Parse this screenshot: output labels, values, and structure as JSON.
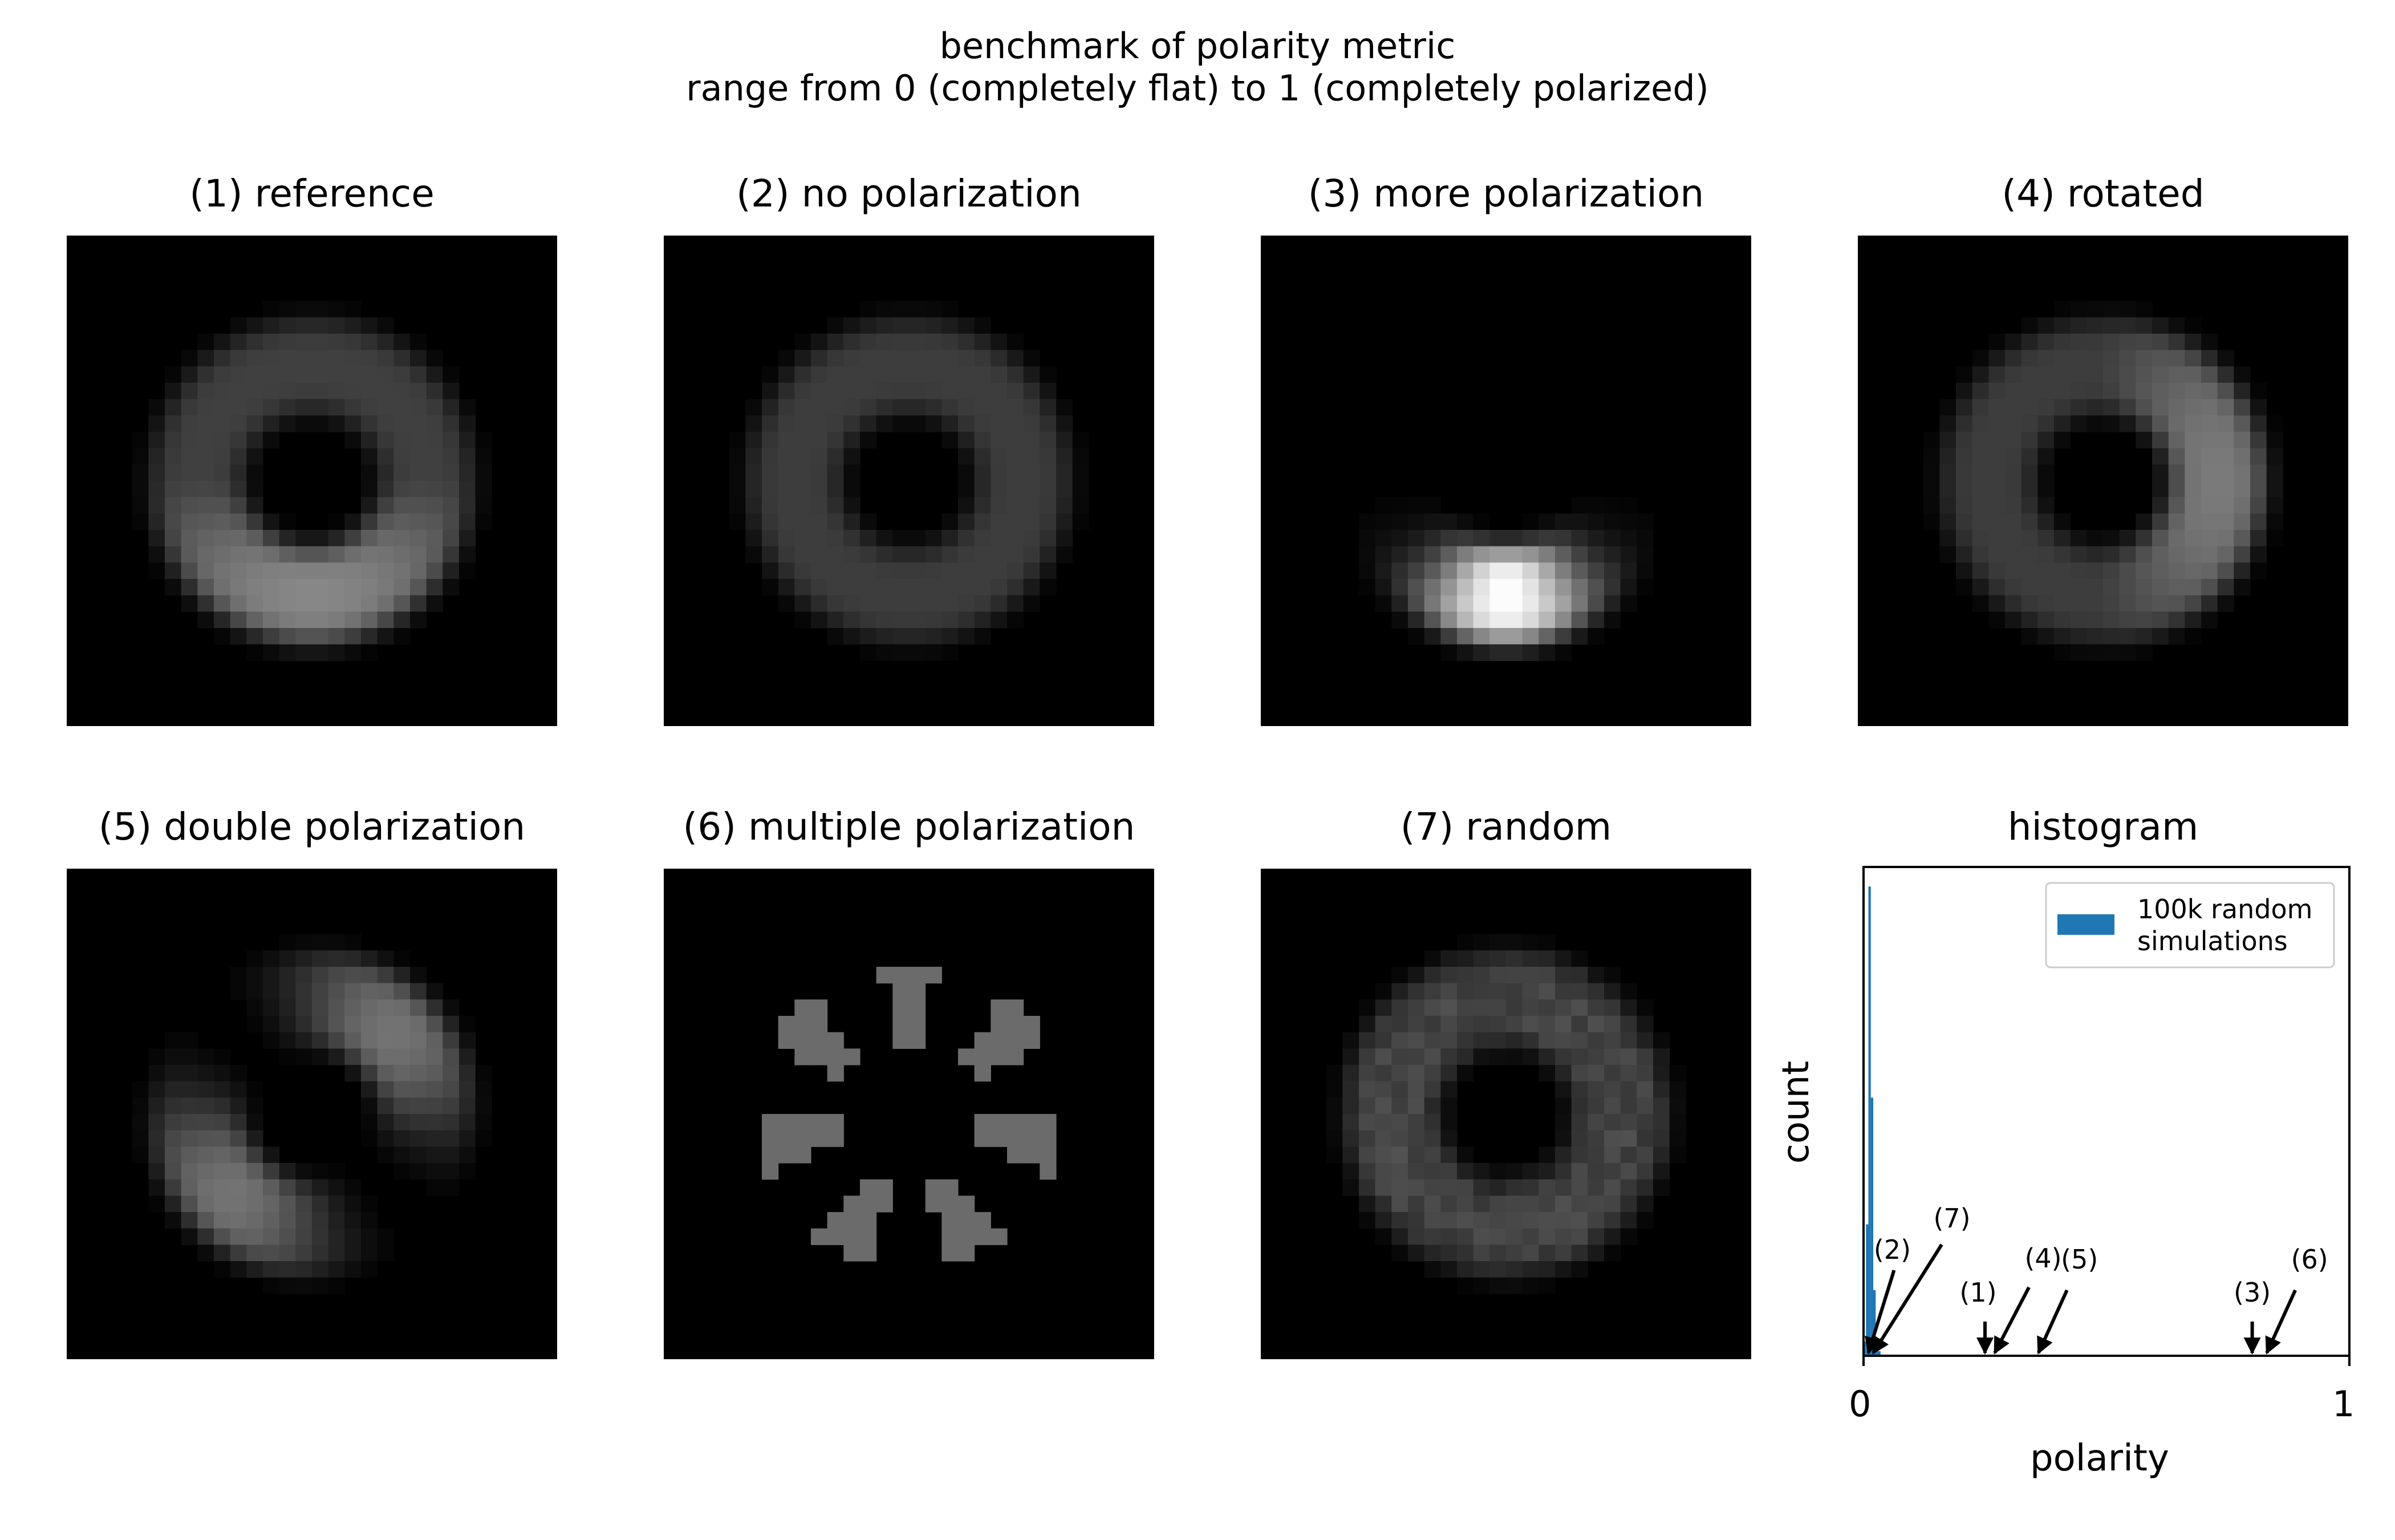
{
  "figure": {
    "title_line1": "benchmark of polarity metric",
    "title_line2": "range from 0 (completely flat) to 1 (completely polarized)"
  },
  "panels": [
    {
      "title": "(1) reference",
      "kind": "reference"
    },
    {
      "title": "(2) no polarization",
      "kind": "flat"
    },
    {
      "title": "(3) more polarization",
      "kind": "strong"
    },
    {
      "title": "(4) rotated",
      "kind": "rotated"
    },
    {
      "title": "(5) double polarization",
      "kind": "double"
    },
    {
      "title": "(6) multiple polarization",
      "kind": "multiple"
    },
    {
      "title": "(7) random",
      "kind": "random"
    }
  ],
  "histogram": {
    "title": "histogram",
    "xlabel": "polarity",
    "ylabel": "count",
    "xtick_labels": [
      "0",
      "1"
    ],
    "legend_line1": "100k random",
    "legend_line2": "simulations",
    "color": "#1f77b4"
  },
  "chart_data": {
    "type": "bar",
    "title": "histogram",
    "xlabel": "polarity",
    "ylabel": "count",
    "xlim": [
      0,
      1
    ],
    "legend_placement": "top-right",
    "series": [
      {
        "name": "100k random simulations",
        "bins": [
          0.0,
          0.005,
          0.01,
          0.015,
          0.02,
          0.025,
          0.03,
          0.035
        ],
        "relative_counts": [
          0.03,
          0.28,
          1.0,
          0.55,
          0.14,
          0.03,
          0.01,
          0.0
        ]
      }
    ],
    "annotations": [
      {
        "label": "(1)",
        "x": 0.25
      },
      {
        "label": "(2)",
        "x": 0.01
      },
      {
        "label": "(3)",
        "x": 0.8
      },
      {
        "label": "(4)",
        "x": 0.27
      },
      {
        "label": "(5)",
        "x": 0.36
      },
      {
        "label": "(6)",
        "x": 0.83
      },
      {
        "label": "(7)",
        "x": 0.02
      }
    ]
  }
}
